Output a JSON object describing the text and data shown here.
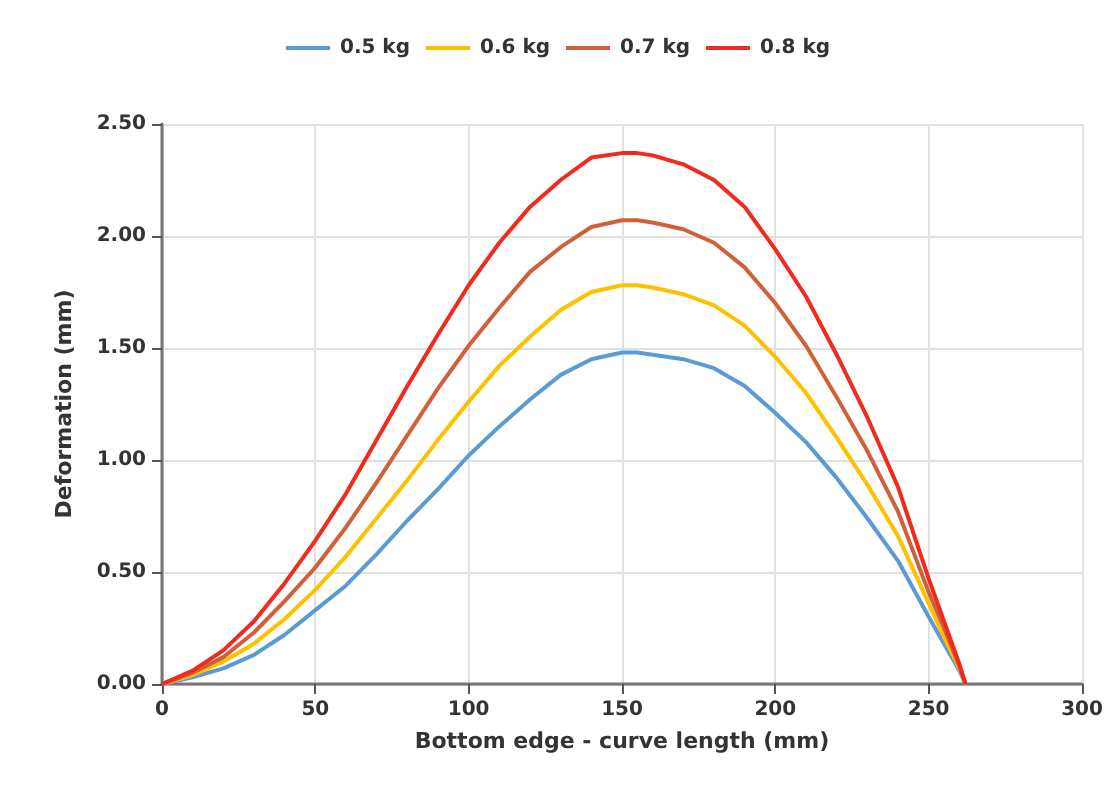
{
  "chart_data": {
    "type": "line",
    "xlabel": "Bottom edge - curve length (mm)",
    "ylabel": "Deformation (mm)",
    "x": [
      0,
      10,
      20,
      30,
      40,
      50,
      60,
      70,
      80,
      90,
      100,
      110,
      120,
      130,
      140,
      150,
      155,
      160,
      170,
      180,
      190,
      200,
      210,
      220,
      230,
      240,
      250,
      255,
      260,
      262
    ],
    "series": [
      {
        "name": "0.5 kg",
        "color": "#5b9bd5",
        "values": [
          0,
          0.03,
          0.07,
          0.13,
          0.22,
          0.33,
          0.44,
          0.58,
          0.73,
          0.87,
          1.02,
          1.15,
          1.27,
          1.38,
          1.45,
          1.48,
          1.48,
          1.47,
          1.45,
          1.41,
          1.33,
          1.21,
          1.08,
          0.92,
          0.74,
          0.55,
          0.3,
          0.18,
          0.06,
          0
        ]
      },
      {
        "name": "0.6 kg",
        "color": "#ffc000",
        "values": [
          0,
          0.04,
          0.1,
          0.18,
          0.29,
          0.42,
          0.57,
          0.74,
          0.91,
          1.09,
          1.26,
          1.42,
          1.55,
          1.67,
          1.75,
          1.78,
          1.78,
          1.77,
          1.74,
          1.69,
          1.6,
          1.46,
          1.3,
          1.1,
          0.89,
          0.66,
          0.36,
          0.21,
          0.07,
          0
        ]
      },
      {
        "name": "0.7 kg",
        "color": "#d0603a",
        "values": [
          0,
          0.05,
          0.12,
          0.23,
          0.37,
          0.52,
          0.7,
          0.9,
          1.11,
          1.32,
          1.51,
          1.68,
          1.84,
          1.95,
          2.04,
          2.07,
          2.07,
          2.06,
          2.03,
          1.97,
          1.86,
          1.7,
          1.51,
          1.28,
          1.04,
          0.77,
          0.41,
          0.25,
          0.08,
          0
        ]
      },
      {
        "name": "0.8 kg",
        "color": "#f02a1e",
        "values": [
          0,
          0.06,
          0.15,
          0.28,
          0.45,
          0.64,
          0.85,
          1.09,
          1.33,
          1.56,
          1.78,
          1.97,
          2.13,
          2.25,
          2.35,
          2.37,
          2.37,
          2.36,
          2.32,
          2.25,
          2.13,
          1.94,
          1.73,
          1.47,
          1.19,
          0.88,
          0.47,
          0.28,
          0.09,
          0
        ]
      }
    ],
    "xlim": [
      0,
      300
    ],
    "xticks": [
      0,
      50,
      100,
      150,
      200,
      250,
      300
    ],
    "ylim": [
      0,
      2.5
    ],
    "yticks": [
      {
        "value": 0,
        "label": "0.00"
      },
      {
        "value": 0.5,
        "label": "0.50"
      },
      {
        "value": 1,
        "label": "1.00"
      },
      {
        "value": 1.5,
        "label": "1.50"
      },
      {
        "value": 2,
        "label": "2.00"
      },
      {
        "value": 2.5,
        "label": "2.50"
      }
    ],
    "grid": true,
    "legend": "top",
    "marker": "none",
    "line_style": "solid"
  }
}
